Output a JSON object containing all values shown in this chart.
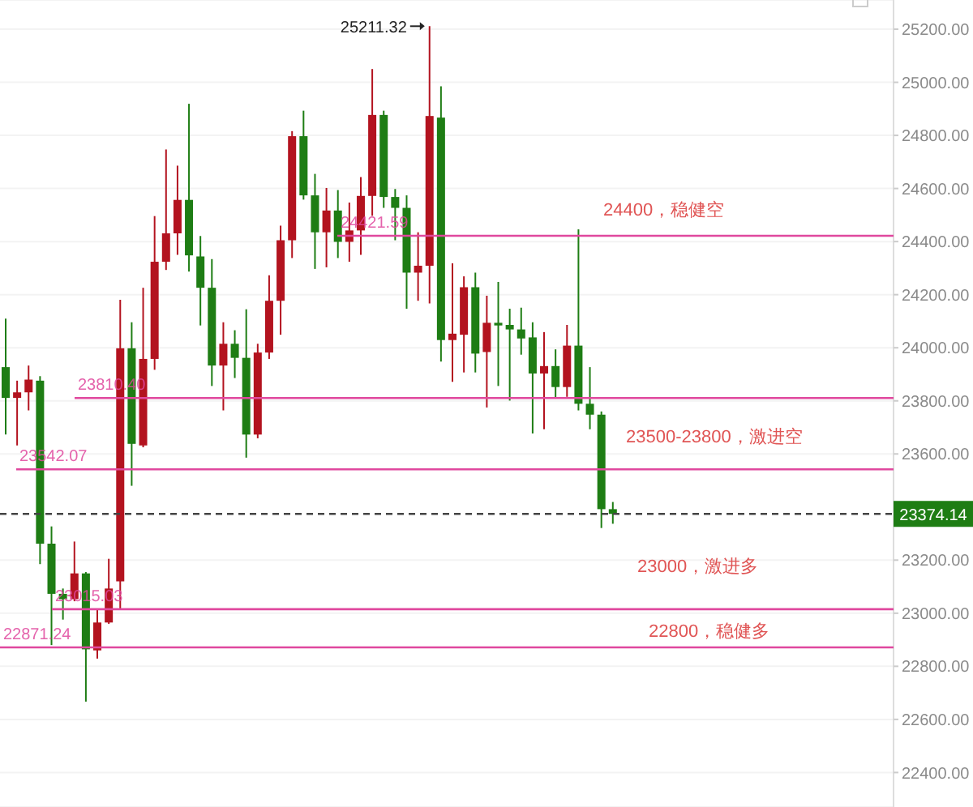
{
  "chart_data": {
    "type": "candlestick",
    "categories": [
      null,
      null,
      null,
      null,
      null,
      null,
      null,
      null,
      null,
      null,
      null,
      null,
      null,
      null,
      null,
      null,
      null,
      null,
      null,
      null,
      null,
      null,
      null,
      null,
      null,
      null,
      null,
      null,
      null,
      null,
      null,
      null,
      null,
      null,
      null,
      null,
      null,
      null,
      null,
      null,
      null,
      null,
      null,
      null,
      null,
      null,
      null,
      null,
      null,
      null,
      null,
      null,
      null,
      null,
      null,
      null,
      null,
      null,
      null,
      null,
      null,
      null,
      null,
      null,
      null,
      null,
      null,
      null,
      null,
      null,
      null,
      null,
      null,
      null,
      null,
      null,
      null,
      null
    ],
    "ohlc": [
      [
        23927,
        24110,
        23673,
        23811
      ],
      [
        23811,
        23876,
        23632,
        23832
      ],
      [
        23832,
        23933,
        23764,
        23880
      ],
      [
        23876,
        23893,
        23185,
        23262
      ],
      [
        23262,
        23327,
        22880,
        23073
      ],
      [
        23073,
        23093,
        22976,
        23053
      ],
      [
        23053,
        23270,
        23045,
        23150
      ],
      [
        23150,
        23155,
        22667,
        22864
      ],
      [
        22860,
        23012,
        22829,
        22965
      ],
      [
        22965,
        23205,
        22960,
        23093
      ],
      [
        23120,
        24181,
        23016,
        23998
      ],
      [
        23998,
        24096,
        23480,
        23638
      ],
      [
        23632,
        24226,
        23625,
        23958
      ],
      [
        23958,
        24496,
        23917,
        24324
      ],
      [
        24324,
        24747,
        24293,
        24431
      ],
      [
        24431,
        24686,
        24350,
        24557
      ],
      [
        24557,
        24919,
        24287,
        24348
      ],
      [
        24344,
        24421,
        24084,
        24226
      ],
      [
        24226,
        24334,
        23856,
        23933
      ],
      [
        23933,
        24096,
        23764,
        24015
      ],
      [
        24015,
        24066,
        23886,
        23962
      ],
      [
        23962,
        24145,
        23586,
        23673
      ],
      [
        23673,
        24015,
        23659,
        23982
      ],
      [
        23982,
        24273,
        23958,
        24177
      ],
      [
        24177,
        24460,
        24049,
        24405
      ],
      [
        24405,
        24816,
        24338,
        24797
      ],
      [
        24797,
        24893,
        24558,
        24574
      ],
      [
        24574,
        24655,
        24297,
        24435
      ],
      [
        24435,
        24602,
        24303,
        24517
      ],
      [
        24517,
        24594,
        24338,
        24399
      ],
      [
        24399,
        24547,
        24324,
        24442
      ],
      [
        24442,
        24643,
        24350,
        24572
      ],
      [
        24572,
        25050,
        24497,
        24877
      ],
      [
        24877,
        24893,
        24527,
        24568
      ],
      [
        24568,
        24598,
        24405,
        24527
      ],
      [
        24527,
        24574,
        24147,
        24283
      ],
      [
        24283,
        24435,
        24177,
        24309
      ],
      [
        24309,
        25211.32,
        24167,
        24873
      ],
      [
        24867,
        24985,
        23948,
        24029
      ],
      [
        24029,
        24318,
        23872,
        24053
      ],
      [
        24049,
        24269,
        23907,
        24228
      ],
      [
        24228,
        24283,
        23907,
        23978
      ],
      [
        23984,
        24196,
        23775,
        24094
      ],
      [
        24094,
        24248,
        23856,
        24084
      ],
      [
        24086,
        24147,
        23801,
        24069
      ],
      [
        24069,
        24151,
        23974,
        24035
      ],
      [
        24039,
        24096,
        23677,
        23903
      ],
      [
        23903,
        24059,
        23693,
        23931
      ],
      [
        23931,
        23994,
        23811,
        23852
      ],
      [
        23852,
        24086,
        23815,
        24008
      ],
      [
        24008,
        24446,
        23764,
        23789
      ],
      [
        23789,
        23927,
        23693,
        23748
      ],
      [
        23748,
        23760,
        23321,
        23392
      ],
      [
        23392,
        23419,
        23337,
        23374.14
      ],
      null,
      null,
      null,
      null,
      null,
      null,
      null,
      null,
      null,
      null,
      null,
      null,
      null,
      null,
      null,
      null,
      null,
      null,
      null,
      null,
      null,
      null,
      null,
      null
    ],
    "colors": [
      "#1e7d14",
      "#b3131f",
      "#b3131f",
      "#1e7d14",
      "#1e7d14",
      "#1e7d14",
      "#b3131f",
      "#1e7d14",
      "#b3131f",
      "#b3131f",
      "#b3131f",
      "#1e7d14",
      "#b3131f",
      "#b3131f",
      "#b3131f",
      "#b3131f",
      "#1e7d14",
      "#1e7d14",
      "#1e7d14",
      "#b3131f",
      "#1e7d14",
      "#1e7d14",
      "#b3131f",
      "#b3131f",
      "#b3131f",
      "#b3131f",
      "#1e7d14",
      "#1e7d14",
      "#b3131f",
      "#1e7d14",
      "#b3131f",
      "#b3131f",
      "#b3131f",
      "#1e7d14",
      "#1e7d14",
      "#1e7d14",
      "#b3131f",
      "#b3131f",
      "#1e7d14",
      "#b3131f",
      "#b3131f",
      "#1e7d14",
      "#b3131f",
      "#1e7d14",
      "#1e7d14",
      "#1e7d14",
      "#1e7d14",
      "#b3131f",
      "#1e7d14",
      "#b3131f",
      "#1e7d14",
      "#1e7d14",
      "#1e7d14",
      "#1e7d14",
      null,
      null,
      null,
      null,
      null,
      null,
      null,
      null,
      null,
      null,
      null,
      null,
      null,
      null,
      null,
      null,
      null,
      null,
      null,
      null,
      null,
      null,
      null,
      null
    ],
    "ylim": [
      22270,
      25310
    ],
    "yticks": [
      {
        "value": 22400,
        "label": "22400.00"
      },
      {
        "value": 22600,
        "label": "22600.00"
      },
      {
        "value": 22800,
        "label": "22800.00"
      },
      {
        "value": 23000,
        "label": "23000.00"
      },
      {
        "value": 23200,
        "label": "23200.00"
      },
      {
        "value": 23600,
        "label": "23600.00"
      },
      {
        "value": 23800,
        "label": "23800.00"
      },
      {
        "value": 24000,
        "label": "24000.00"
      },
      {
        "value": 24200,
        "label": "24200.00"
      },
      {
        "value": 24400,
        "label": "24400.00"
      },
      {
        "value": 24600,
        "label": "24600.00"
      },
      {
        "value": 24800,
        "label": "24800.00"
      },
      {
        "value": 25000,
        "label": "25000.00"
      },
      {
        "value": 25200,
        "label": "25200.00"
      }
    ],
    "grid": "y",
    "ref_lines": [
      {
        "axis": "y",
        "value": 24421.59,
        "label": "24421.59",
        "color": "#e0489e"
      },
      {
        "axis": "y",
        "value": 23810.4,
        "label": "23810.40",
        "color": "#e0489e"
      },
      {
        "axis": "y",
        "value": 23542.07,
        "label": "23542.07",
        "color": "#e0489e"
      },
      {
        "axis": "y",
        "value": 23015.03,
        "label": "23015.03",
        "color": "#e0489e"
      },
      {
        "axis": "y",
        "value": 22871.24,
        "label": "22871.24",
        "color": "#e0489e"
      },
      {
        "axis": "y",
        "value": 23374.14,
        "label": "23374.14",
        "color": "#444444",
        "line_style": "dashed"
      }
    ],
    "annotations": [
      "25211.32",
      "24400，稳健空",
      "23500-23800，激进空",
      "23000，激进多",
      "22800，稳健多"
    ]
  }
}
